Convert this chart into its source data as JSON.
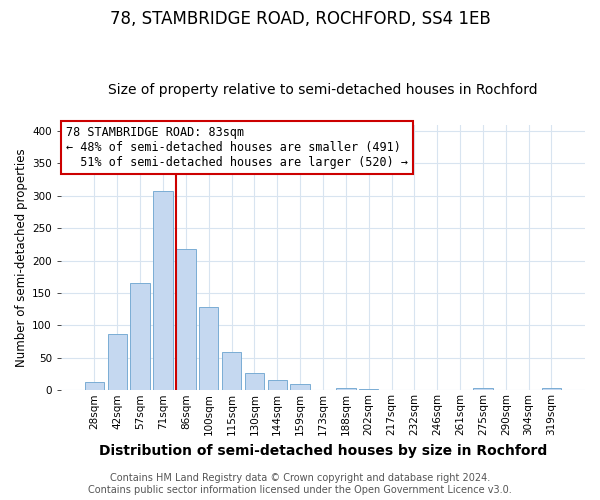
{
  "title": "78, STAMBRIDGE ROAD, ROCHFORD, SS4 1EB",
  "subtitle": "Size of property relative to semi-detached houses in Rochford",
  "xlabel": "Distribution of semi-detached houses by size in Rochford",
  "ylabel": "Number of semi-detached properties",
  "categories": [
    "28sqm",
    "42sqm",
    "57sqm",
    "71sqm",
    "86sqm",
    "100sqm",
    "115sqm",
    "130sqm",
    "144sqm",
    "159sqm",
    "173sqm",
    "188sqm",
    "202sqm",
    "217sqm",
    "232sqm",
    "246sqm",
    "261sqm",
    "275sqm",
    "290sqm",
    "304sqm",
    "319sqm"
  ],
  "values": [
    13,
    87,
    165,
    308,
    218,
    129,
    59,
    26,
    16,
    10,
    0,
    4,
    2,
    0,
    0,
    0,
    0,
    3,
    0,
    0,
    4
  ],
  "bar_color": "#c5d8f0",
  "bar_edge_color": "#7aadd4",
  "vline_color": "#cc0000",
  "vline_at_bar_index": 4,
  "ylim": [
    0,
    410
  ],
  "yticks": [
    0,
    50,
    100,
    150,
    200,
    250,
    300,
    350,
    400
  ],
  "annotation_title": "78 STAMBRIDGE ROAD: 83sqm",
  "annotation_line1": "← 48% of semi-detached houses are smaller (491)",
  "annotation_line2": "  51% of semi-detached houses are larger (520) →",
  "annotation_box_facecolor": "#ffffff",
  "annotation_box_edgecolor": "#cc0000",
  "footer1": "Contains HM Land Registry data © Crown copyright and database right 2024.",
  "footer2": "Contains public sector information licensed under the Open Government Licence v3.0.",
  "fig_facecolor": "#ffffff",
  "plot_facecolor": "#ffffff",
  "grid_color": "#d8e4f0",
  "title_fontsize": 12,
  "subtitle_fontsize": 10,
  "xlabel_fontsize": 10,
  "ylabel_fontsize": 8.5,
  "tick_fontsize": 7.5,
  "annotation_fontsize": 8.5,
  "footer_fontsize": 7
}
